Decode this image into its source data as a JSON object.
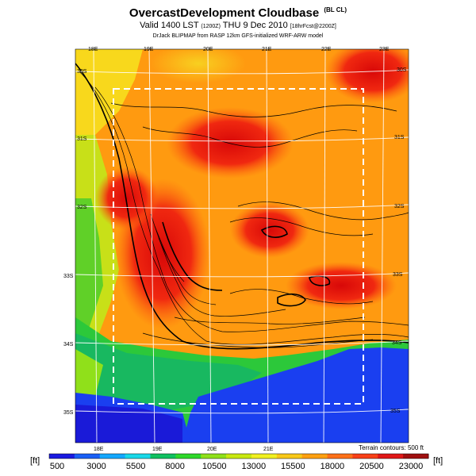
{
  "header": {
    "title": "OvercastDevelopment Cloudbase",
    "title_tag": "(BL CL)",
    "valid_prefix": "Valid 1400 LST",
    "valid_code": "(1200Z)",
    "valid_date": "THU 9 Dec 2010",
    "forecast_tag": "[18hrFcst@2200Z]",
    "credits": "DrJack BLIPMAP from RASP 12km GFS-initialized WRF-ARW model"
  },
  "map": {
    "lon_labels": [
      "18E",
      "19E",
      "20E",
      "21E",
      "22E",
      "23E"
    ],
    "lat_labels": [
      "30S",
      "31S",
      "32S",
      "33S",
      "34S",
      "35S"
    ],
    "terrain_note": "Terrain contours: 500 ft",
    "colors": {
      "ocean": "#1a3ff0",
      "low": "#1bbf3a",
      "mid": "#f0d020",
      "high": "#ff8a10",
      "peak": "#e01010"
    }
  },
  "colorbar": {
    "unit": "[ft]",
    "labels": [
      "500",
      "3000",
      "5500",
      "8000",
      "10500",
      "13000",
      "15500",
      "18000",
      "20500",
      "23000"
    ],
    "colors": [
      "#1a1ae0",
      "#1a5ff5",
      "#14a8ff",
      "#19d8e8",
      "#10c060",
      "#2ed82a",
      "#8fe01a",
      "#c8e810",
      "#f0f020",
      "#f8c818",
      "#ffa010",
      "#ff7018",
      "#f84018",
      "#e01818",
      "#a01010"
    ]
  }
}
